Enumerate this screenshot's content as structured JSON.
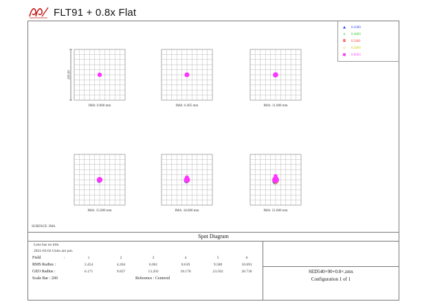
{
  "header": {
    "title": "FLT91 + 0.8x Flat"
  },
  "legend": [
    {
      "label": "0.4360",
      "color": "#2b3cff",
      "mark": "▲"
    },
    {
      "label": "0.4860",
      "color": "#33cc33",
      "mark": "x"
    },
    {
      "label": "0.5461",
      "color": "#ff2b2b",
      "mark": "◘"
    },
    {
      "label": "0.5890",
      "color": "#c9c900",
      "mark": "◇"
    },
    {
      "label": "0.6563",
      "color": "#ff33ff",
      "mark": "■"
    }
  ],
  "scale_label": "200.00",
  "fields": [
    {
      "ima": "IMA: 0.000 mm",
      "spread": 0
    },
    {
      "ima": "IMA: 6.495 mm",
      "spread": 1
    },
    {
      "ima": "IMA: 11.000 mm",
      "spread": 2
    },
    {
      "ima": "IMA: 15.000 mm",
      "spread": 3
    },
    {
      "ima": "IMA: 18.000 mm",
      "spread": 4
    },
    {
      "ima": "IMA: 21.000 mm",
      "spread": 6
    }
  ],
  "surface_label": "SURFACE: IMA",
  "diagram_title": "Spot Diagram",
  "info": {
    "lens_title": "Lens has no title.",
    "date_units": "2021-03-02  Units are µm.",
    "field_label": "Field",
    "field_numbers": [
      "1",
      "2",
      "3",
      "4",
      "5",
      "6"
    ],
    "rms_label": "RMS Radius  :",
    "rms_values": [
      "2.454",
      "4.264",
      "6.061",
      "8.619",
      "9.580",
      "10.691"
    ],
    "geo_label": "GEO Radius  :",
    "geo_values": [
      "6.171",
      "9.837",
      "13.203",
      "18.178",
      "23.502",
      "26.736"
    ],
    "scale_bar_label": "Scale Bar   : 200",
    "reference_label": "Reference  :  Centroid",
    "colon": ":"
  },
  "config": {
    "file": "SED540×90+0.8×.zmx",
    "configuration": "Configuration 1 of 1"
  }
}
